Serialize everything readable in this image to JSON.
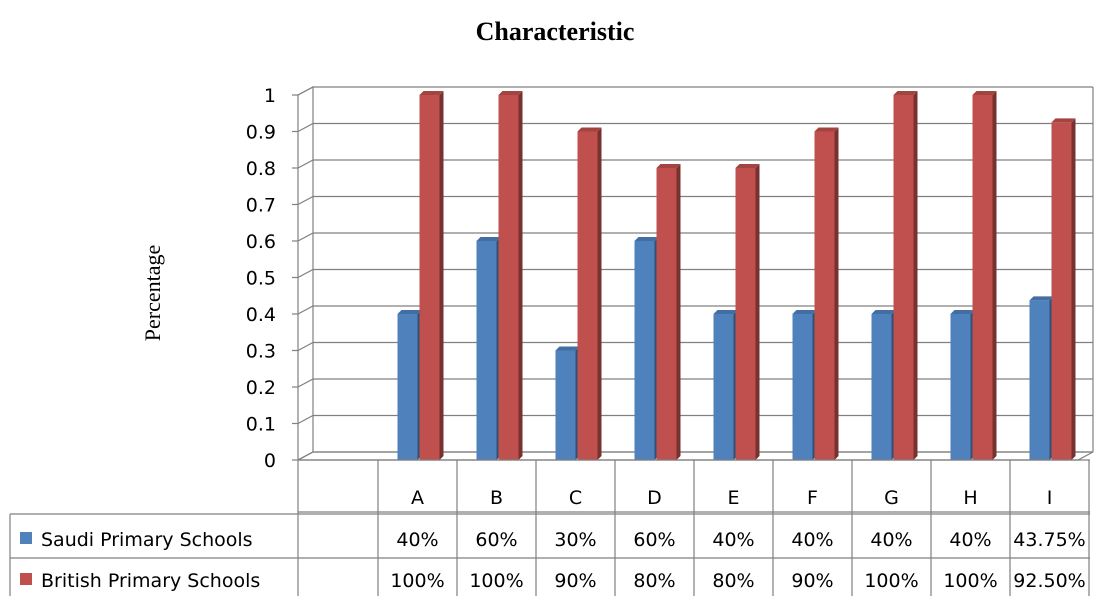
{
  "chart_data": {
    "type": "bar",
    "title": "Characteristic",
    "ylabel": "Percentage",
    "xlabel": "",
    "ylim": [
      0,
      1
    ],
    "yticks": [
      "0",
      "0.1",
      "0.2",
      "0.3",
      "0.4",
      "0.5",
      "0.6",
      "0.7",
      "0.8",
      "0.9",
      "1"
    ],
    "categories": [
      "A",
      "B",
      "C",
      "D",
      "E",
      "F",
      "G",
      "H",
      "I"
    ],
    "grid": true,
    "legend": "data-table",
    "series": [
      {
        "name": "Saudi Primary Schools",
        "color": "#4F81BD",
        "values": [
          0.4,
          0.6,
          0.3,
          0.6,
          0.4,
          0.4,
          0.4,
          0.4,
          0.4375
        ],
        "labels": [
          "40%",
          "60%",
          "30%",
          "60%",
          "40%",
          "40%",
          "40%",
          "40%",
          "43.75%"
        ]
      },
      {
        "name": "British Primary Schools",
        "color": "#C0504D",
        "values": [
          1.0,
          1.0,
          0.9,
          0.8,
          0.8,
          0.9,
          1.0,
          1.0,
          0.925
        ],
        "labels": [
          "100%",
          "100%",
          "90%",
          "80%",
          "80%",
          "90%",
          "100%",
          "100%",
          "92.50%"
        ]
      }
    ]
  }
}
